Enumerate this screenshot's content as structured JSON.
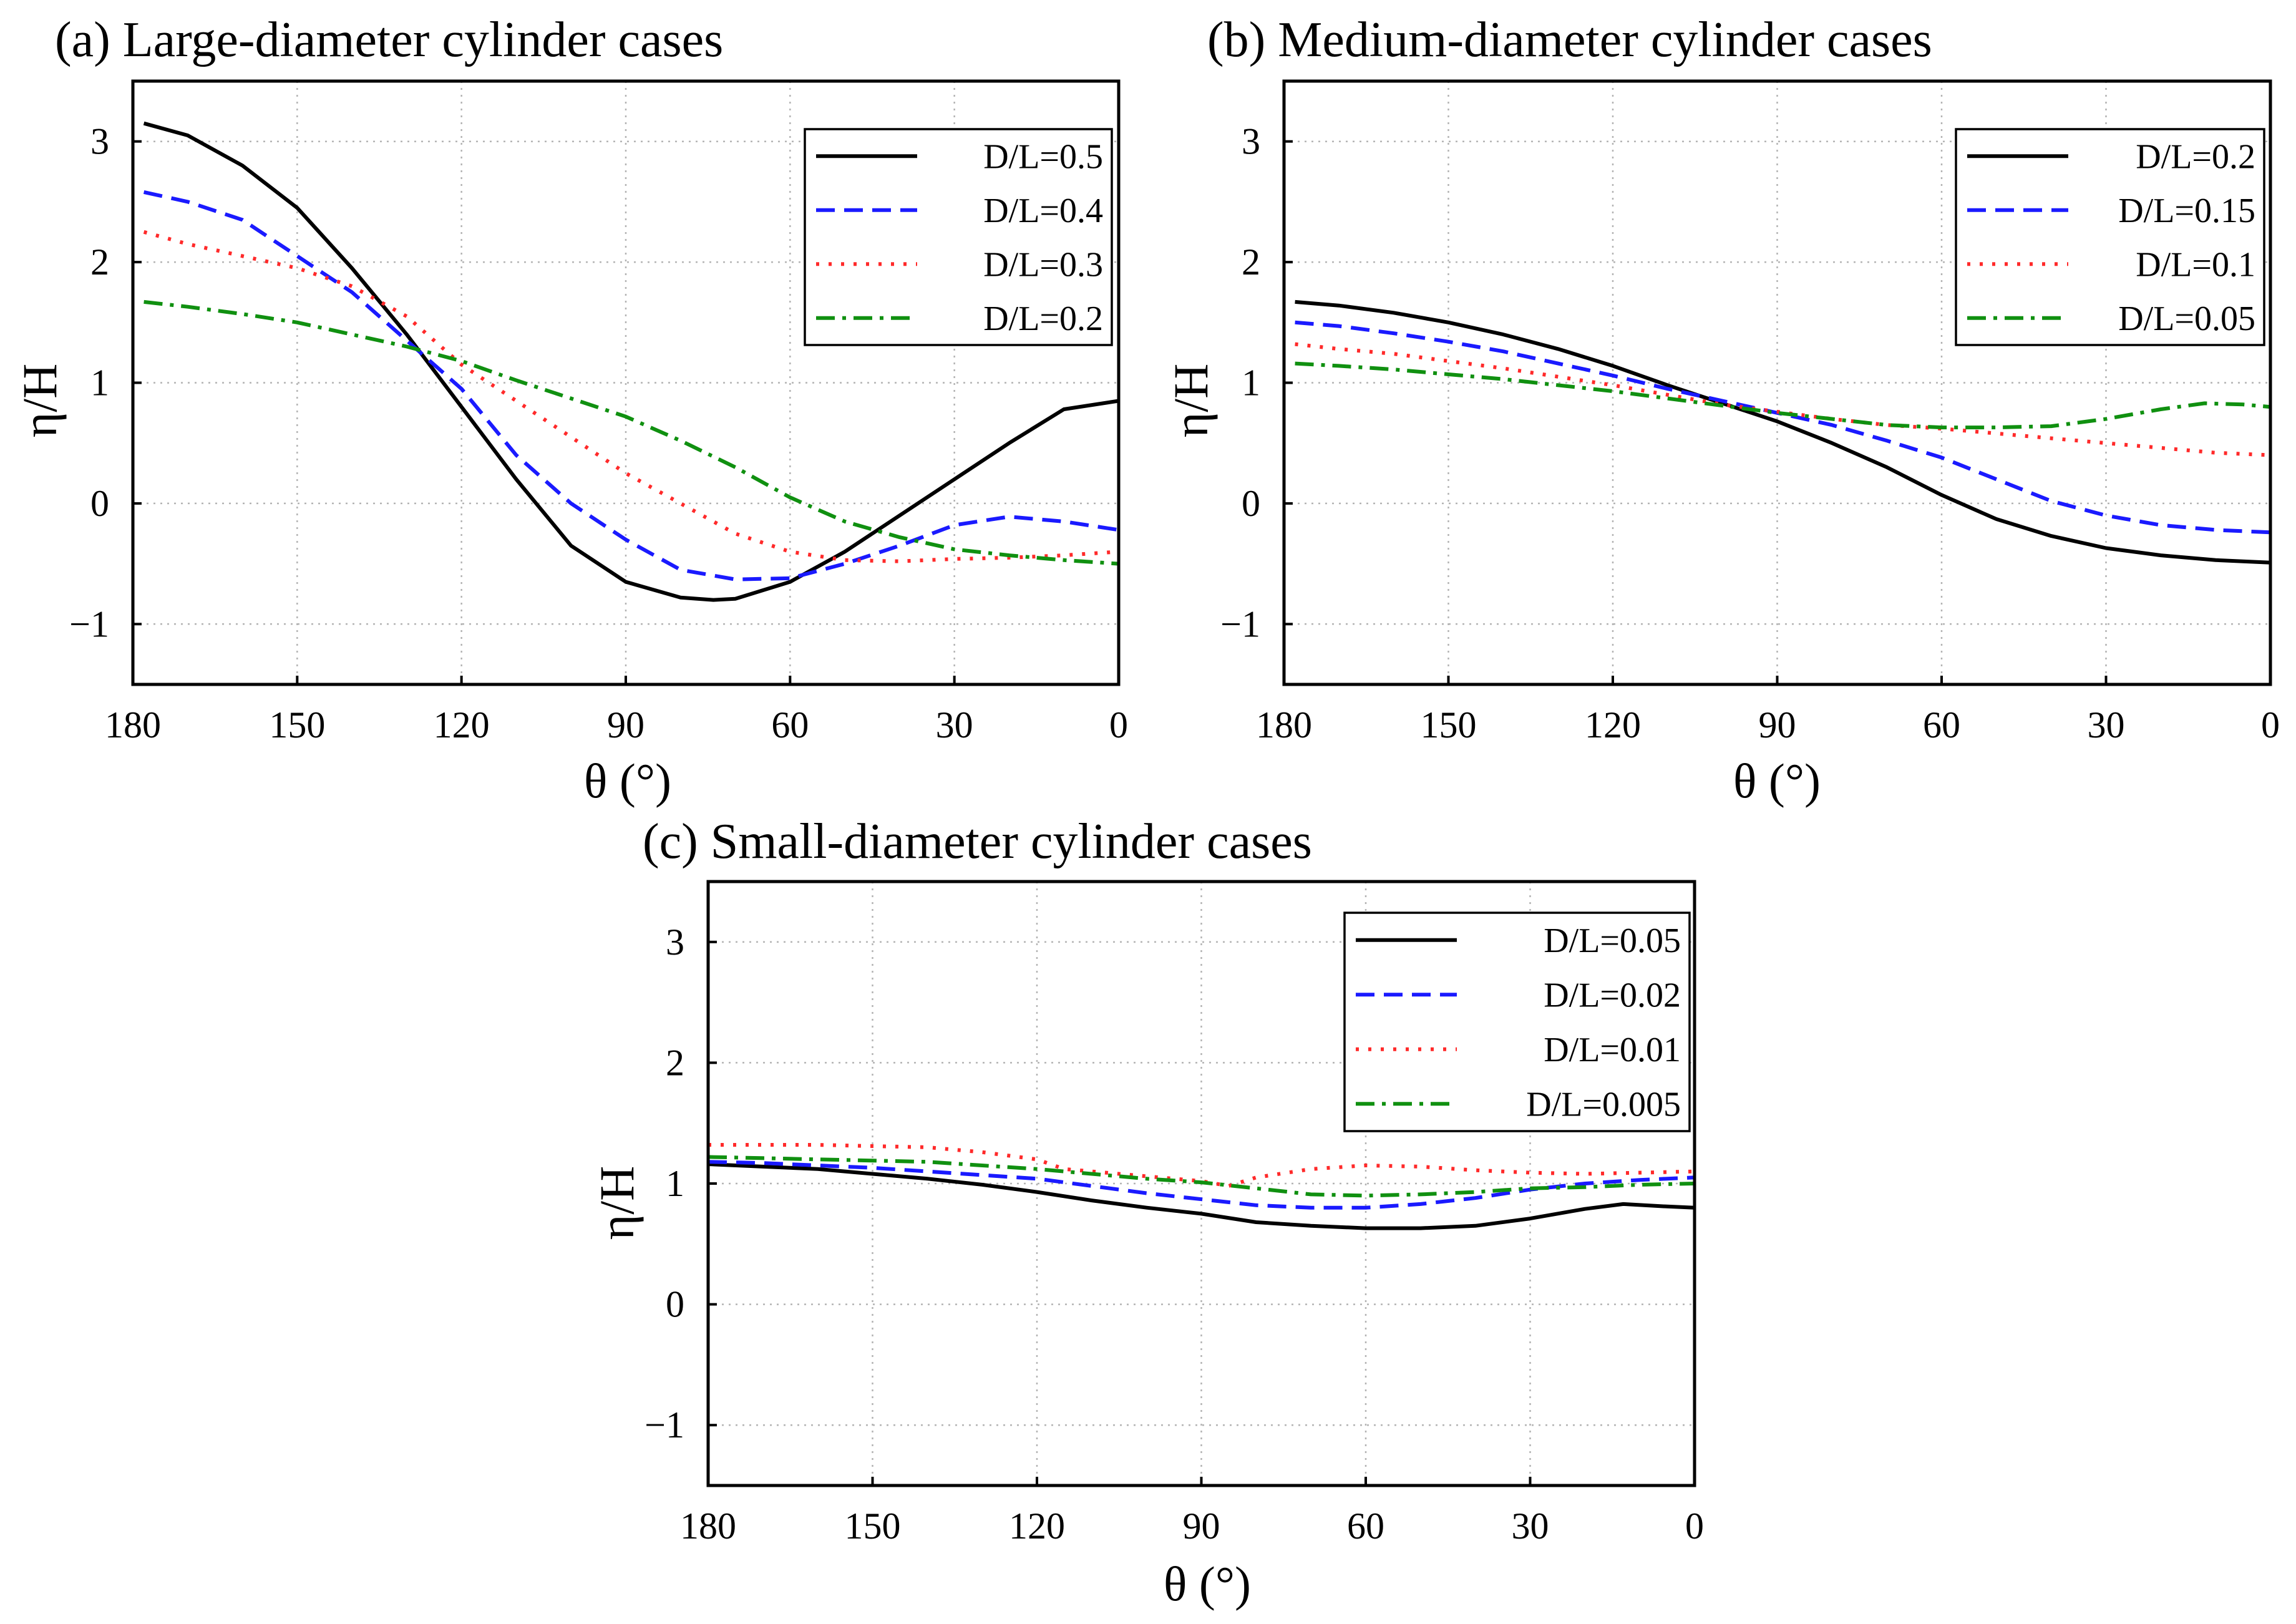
{
  "figure_panels": [
    "a",
    "b",
    "c"
  ],
  "chart_data": [
    {
      "type": "line",
      "title": "(a) Large-diameter cylinder cases",
      "xlabel": "θ (°)",
      "ylabel": "η/H",
      "xlim": [
        180,
        0
      ],
      "ylim": [
        -1.5,
        3.5
      ],
      "xticks": [
        180,
        150,
        120,
        90,
        60,
        30,
        0
      ],
      "xtick_labels": [
        "180",
        "150",
        "120",
        "90",
        "60",
        "30",
        "0"
      ],
      "yticks": [
        -1,
        0,
        1,
        2,
        3
      ],
      "ytick_labels": [
        "−1",
        "0",
        "1",
        "2",
        "3"
      ],
      "grid": true,
      "legend_position": "top-right",
      "series": [
        {
          "name": "D/L=0.5",
          "color": "#000000",
          "style": "solid",
          "x": [
            178,
            170,
            160,
            150,
            140,
            130,
            120,
            110,
            100,
            90,
            80,
            74,
            70,
            60,
            50,
            40,
            30,
            20,
            10,
            0
          ],
          "y": [
            3.15,
            3.05,
            2.8,
            2.45,
            1.95,
            1.4,
            0.8,
            0.2,
            -0.35,
            -0.65,
            -0.78,
            -0.8,
            -0.79,
            -0.65,
            -0.4,
            -0.1,
            0.2,
            0.5,
            0.78,
            0.85
          ]
        },
        {
          "name": "D/L=0.4",
          "color": "#1a1aff",
          "style": "dashed",
          "x": [
            178,
            170,
            160,
            150,
            140,
            130,
            120,
            110,
            100,
            90,
            80,
            70,
            60,
            50,
            40,
            30,
            20,
            10,
            0
          ],
          "y": [
            2.58,
            2.5,
            2.35,
            2.05,
            1.75,
            1.35,
            0.95,
            0.4,
            0.0,
            -0.3,
            -0.55,
            -0.63,
            -0.62,
            -0.5,
            -0.35,
            -0.18,
            -0.11,
            -0.15,
            -0.22
          ]
        },
        {
          "name": "D/L=0.3",
          "color": "#ff2a2a",
          "style": "dotted",
          "x": [
            178,
            170,
            160,
            150,
            140,
            130,
            120,
            110,
            100,
            90,
            80,
            70,
            60,
            50,
            40,
            30,
            20,
            10,
            0
          ],
          "y": [
            2.25,
            2.15,
            2.05,
            1.95,
            1.8,
            1.55,
            1.15,
            0.85,
            0.55,
            0.25,
            0.0,
            -0.25,
            -0.4,
            -0.47,
            -0.48,
            -0.46,
            -0.45,
            -0.43,
            -0.4
          ]
        },
        {
          "name": "D/L=0.2",
          "color": "#109010",
          "style": "dashdot",
          "x": [
            178,
            170,
            160,
            150,
            140,
            130,
            120,
            110,
            100,
            90,
            80,
            70,
            60,
            50,
            40,
            30,
            20,
            10,
            0
          ],
          "y": [
            1.67,
            1.63,
            1.57,
            1.5,
            1.4,
            1.3,
            1.18,
            1.02,
            0.87,
            0.72,
            0.52,
            0.3,
            0.05,
            -0.15,
            -0.28,
            -0.38,
            -0.43,
            -0.47,
            -0.5
          ]
        }
      ]
    },
    {
      "type": "line",
      "title": "(b) Medium-diameter cylinder cases",
      "xlabel": "θ (°)",
      "ylabel": "η/H",
      "xlim": [
        180,
        0
      ],
      "ylim": [
        -1.5,
        3.5
      ],
      "xticks": [
        180,
        150,
        120,
        90,
        60,
        30,
        0
      ],
      "xtick_labels": [
        "180",
        "150",
        "120",
        "90",
        "60",
        "30",
        "0"
      ],
      "yticks": [
        -1,
        0,
        1,
        2,
        3
      ],
      "ytick_labels": [
        "−1",
        "0",
        "1",
        "2",
        "3"
      ],
      "grid": true,
      "legend_position": "top-right",
      "series": [
        {
          "name": "D/L=0.2",
          "color": "#000000",
          "style": "solid",
          "x": [
            178,
            170,
            160,
            150,
            140,
            130,
            120,
            110,
            100,
            90,
            80,
            70,
            60,
            50,
            40,
            30,
            20,
            10,
            0
          ],
          "y": [
            1.67,
            1.64,
            1.58,
            1.5,
            1.4,
            1.28,
            1.14,
            0.98,
            0.83,
            0.68,
            0.5,
            0.3,
            0.07,
            -0.13,
            -0.27,
            -0.37,
            -0.43,
            -0.47,
            -0.49
          ]
        },
        {
          "name": "D/L=0.15",
          "color": "#1a1aff",
          "style": "dashed",
          "x": [
            178,
            170,
            160,
            150,
            140,
            130,
            120,
            110,
            100,
            90,
            80,
            70,
            60,
            50,
            40,
            30,
            20,
            10,
            0
          ],
          "y": [
            1.5,
            1.47,
            1.41,
            1.34,
            1.26,
            1.16,
            1.06,
            0.95,
            0.85,
            0.75,
            0.65,
            0.52,
            0.38,
            0.2,
            0.02,
            -0.1,
            -0.18,
            -0.22,
            -0.24
          ]
        },
        {
          "name": "D/L=0.1",
          "color": "#ff2a2a",
          "style": "dotted",
          "x": [
            178,
            170,
            160,
            150,
            140,
            130,
            120,
            110,
            100,
            90,
            80,
            70,
            60,
            50,
            40,
            30,
            20,
            10,
            0
          ],
          "y": [
            1.32,
            1.28,
            1.24,
            1.18,
            1.12,
            1.05,
            0.98,
            0.9,
            0.82,
            0.76,
            0.7,
            0.65,
            0.62,
            0.58,
            0.54,
            0.5,
            0.46,
            0.42,
            0.4
          ]
        },
        {
          "name": "D/L=0.05",
          "color": "#109010",
          "style": "dashdot",
          "x": [
            178,
            170,
            160,
            150,
            140,
            130,
            120,
            110,
            100,
            90,
            80,
            70,
            60,
            50,
            40,
            30,
            20,
            12,
            5,
            0
          ],
          "y": [
            1.16,
            1.14,
            1.11,
            1.07,
            1.03,
            0.98,
            0.93,
            0.87,
            0.81,
            0.75,
            0.7,
            0.65,
            0.63,
            0.63,
            0.64,
            0.7,
            0.78,
            0.83,
            0.82,
            0.8
          ]
        }
      ]
    },
    {
      "type": "line",
      "title": "(c) Small-diameter cylinder cases",
      "xlabel": "θ (°)",
      "ylabel": "η/H",
      "xlim": [
        180,
        0
      ],
      "ylim": [
        -1.5,
        3.5
      ],
      "xticks": [
        180,
        150,
        120,
        90,
        60,
        30,
        0
      ],
      "xtick_labels": [
        "180",
        "150",
        "120",
        "90",
        "60",
        "30",
        "0"
      ],
      "yticks": [
        -1,
        0,
        1,
        2,
        3
      ],
      "ytick_labels": [
        "−1",
        "0",
        "1",
        "2",
        "3"
      ],
      "grid": true,
      "legend_position": "top-right",
      "series": [
        {
          "name": "D/L=0.05",
          "color": "#000000",
          "style": "solid",
          "x": [
            180,
            170,
            160,
            150,
            140,
            130,
            120,
            110,
            100,
            90,
            80,
            70,
            60,
            50,
            40,
            30,
            20,
            13,
            5,
            0
          ],
          "y": [
            1.16,
            1.14,
            1.12,
            1.08,
            1.04,
            0.99,
            0.93,
            0.86,
            0.8,
            0.75,
            0.68,
            0.65,
            0.63,
            0.63,
            0.65,
            0.71,
            0.79,
            0.83,
            0.81,
            0.8
          ]
        },
        {
          "name": "D/L=0.02",
          "color": "#1a1aff",
          "style": "dashed",
          "x": [
            180,
            170,
            160,
            150,
            140,
            130,
            120,
            110,
            100,
            90,
            80,
            70,
            60,
            50,
            40,
            30,
            20,
            10,
            0
          ],
          "y": [
            1.18,
            1.17,
            1.15,
            1.13,
            1.1,
            1.07,
            1.04,
            0.98,
            0.92,
            0.87,
            0.82,
            0.8,
            0.8,
            0.83,
            0.88,
            0.95,
            1.0,
            1.03,
            1.05
          ]
        },
        {
          "name": "D/L=0.01",
          "color": "#ff2a2a",
          "style": "dotted",
          "x": [
            180,
            170,
            160,
            150,
            140,
            130,
            120,
            115,
            110,
            100,
            90,
            85,
            80,
            70,
            60,
            50,
            40,
            30,
            20,
            10,
            0
          ],
          "y": [
            1.32,
            1.32,
            1.32,
            1.31,
            1.3,
            1.26,
            1.2,
            1.12,
            1.1,
            1.06,
            1.02,
            0.98,
            1.05,
            1.12,
            1.15,
            1.14,
            1.11,
            1.09,
            1.08,
            1.09,
            1.1
          ]
        },
        {
          "name": "D/L=0.005",
          "color": "#109010",
          "style": "dashdot",
          "x": [
            180,
            170,
            160,
            150,
            140,
            130,
            120,
            110,
            100,
            90,
            80,
            70,
            60,
            50,
            40,
            30,
            20,
            10,
            0
          ],
          "y": [
            1.22,
            1.21,
            1.2,
            1.19,
            1.18,
            1.15,
            1.12,
            1.08,
            1.04,
            1.01,
            0.96,
            0.91,
            0.9,
            0.91,
            0.93,
            0.96,
            0.97,
            0.99,
            1.0
          ]
        }
      ]
    }
  ]
}
